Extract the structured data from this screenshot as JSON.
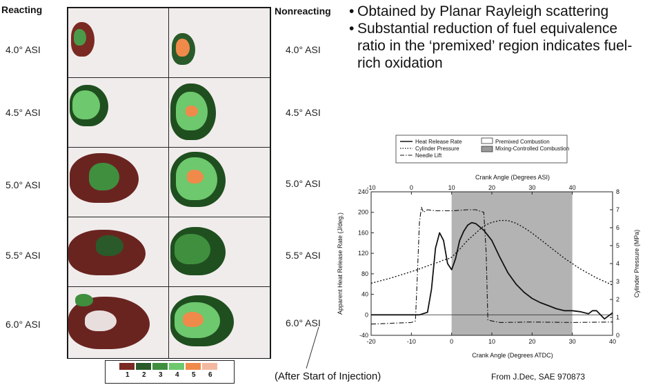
{
  "slide": {
    "bullets": [
      "Obtained by Planar Rayleigh scattering",
      "Substantial reduction of fuel equivalence ratio in the ‘premixed’ region indicates fuel-rich oxidation"
    ],
    "caption": "(After Start of Injection)",
    "source": "From J.Dec, SAE 970873"
  },
  "images": {
    "header_left": "Reacting",
    "header_right": "Nonreacting",
    "rows": [
      "4.0° ASI",
      "4.5° ASI",
      "5.0° ASI",
      "5.5° ASI",
      "6.0° ASI"
    ],
    "colorbar_labels": [
      "1",
      "2",
      "3",
      "4",
      "5",
      "6"
    ],
    "colorbar_colors": [
      "#7a2a22",
      "#2a5a2a",
      "#3f8f3f",
      "#6ec86e",
      "#f08a4a",
      "#f3b9a0"
    ]
  },
  "chart_data": {
    "type": "line",
    "title": "",
    "legend": [
      {
        "label": "Heat Release Rate",
        "style": "solid"
      },
      {
        "label": "Cylinder Pressure",
        "style": "dotted"
      },
      {
        "label": "Needle Lift",
        "style": "dash-dot"
      },
      {
        "label": "Premixed Combustion",
        "style": "white-box"
      },
      {
        "label": "Mixing-Controlled Combustion",
        "style": "gray-box"
      }
    ],
    "xlabel": "Crank Angle (Degrees ATDC)",
    "x2label": "Crank Angle (Degrees ASI)",
    "ylabel": "Apparent Heat Release Rate (J/deg.)",
    "y2label": "Cylinder Pressure (MPa)",
    "xlim": [
      -20,
      40
    ],
    "x2lim": [
      -10,
      50
    ],
    "ylim": [
      -40,
      240
    ],
    "y2lim": [
      0,
      8
    ],
    "xticks": [
      -20,
      -10,
      0,
      10,
      20,
      30,
      40
    ],
    "x2ticks": [
      -10,
      0,
      10,
      20,
      30,
      40
    ],
    "yticks": [
      -40,
      0,
      40,
      80,
      120,
      160,
      200,
      240
    ],
    "y2ticks": [
      0,
      1,
      2,
      3,
      4,
      5,
      6,
      7,
      8
    ],
    "shaded_region": [
      0,
      30
    ],
    "series": [
      {
        "name": "Heat Release Rate",
        "axis": "left",
        "x": [
          -20,
          -12,
          -8,
          -6,
          -5,
          -4,
          -3,
          -2,
          -1,
          0,
          1,
          2,
          3,
          4,
          5,
          6,
          8,
          10,
          12,
          14,
          16,
          18,
          20,
          22,
          24,
          26,
          28,
          30,
          32,
          34,
          35,
          36,
          37,
          38,
          40
        ],
        "y": [
          0,
          0,
          0,
          5,
          50,
          130,
          160,
          145,
          100,
          88,
          110,
          145,
          163,
          175,
          180,
          178,
          165,
          145,
          112,
          82,
          60,
          44,
          32,
          24,
          18,
          12,
          8,
          8,
          6,
          2,
          8,
          8,
          0,
          -8,
          4
        ]
      },
      {
        "name": "Cylinder Pressure",
        "axis": "right",
        "x": [
          -20,
          -15,
          -10,
          -8,
          -5,
          -3,
          -2,
          -1,
          0,
          2,
          4,
          6,
          8,
          10,
          12,
          14,
          16,
          18,
          20,
          24,
          28,
          32,
          36,
          40
        ],
        "y": [
          2.9,
          3.2,
          3.55,
          3.7,
          3.95,
          4.1,
          4.2,
          4.25,
          4.35,
          4.8,
          5.3,
          5.7,
          6.1,
          6.3,
          6.4,
          6.4,
          6.25,
          6.0,
          5.7,
          5.0,
          4.3,
          3.7,
          3.2,
          2.8
        ]
      },
      {
        "name": "Needle Lift",
        "axis": "left",
        "x": [
          -20,
          -10,
          -9,
          -8.6,
          -8,
          -7.5,
          -7,
          -6,
          -4,
          0,
          4,
          6,
          8,
          8.6,
          9,
          10,
          12,
          20,
          30,
          40
        ],
        "y": [
          -18,
          -15,
          -12,
          60,
          180,
          210,
          200,
          205,
          203,
          203,
          205,
          205,
          200,
          120,
          -10,
          -12,
          -15,
          -14,
          -15,
          -14
        ]
      }
    ]
  }
}
